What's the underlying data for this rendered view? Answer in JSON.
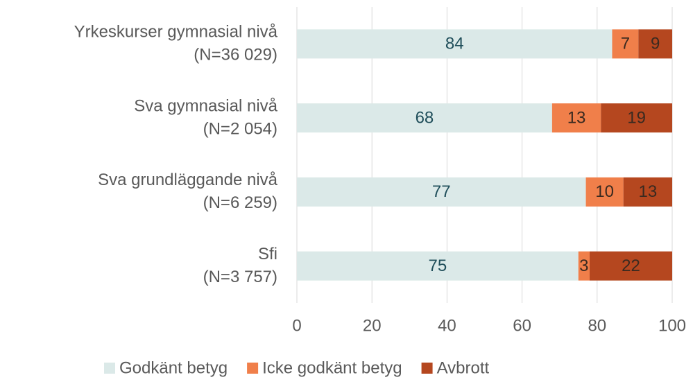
{
  "chart_data": {
    "type": "stacked-bar-horizontal",
    "categories": [
      [
        "Yrkeskurser gymnasial nivå",
        "(N=36 029)"
      ],
      [
        "Sva gymnasial nivå",
        "(N=2 054)"
      ],
      [
        "Sva grundläggande nivå",
        "(N=6 259)"
      ],
      [
        "Sfi",
        "(N=3 757)"
      ]
    ],
    "series": [
      {
        "name": "Godkänt betyg",
        "color": "#dbe9e8",
        "label_color": "#1f4e5a",
        "values": [
          84,
          68,
          77,
          75
        ]
      },
      {
        "name": "Icke godkänt betyg",
        "color": "#f07f4a",
        "label_color": "#3a2a20",
        "values": [
          7,
          13,
          10,
          3
        ]
      },
      {
        "name": "Avbrott",
        "color": "#b5471f",
        "label_color": "#3a2a20",
        "values": [
          9,
          19,
          13,
          22
        ]
      }
    ],
    "xlim": [
      0,
      100
    ],
    "xticks": [
      0,
      20,
      40,
      60,
      80,
      100
    ],
    "grid": true,
    "legend": "bottom"
  }
}
